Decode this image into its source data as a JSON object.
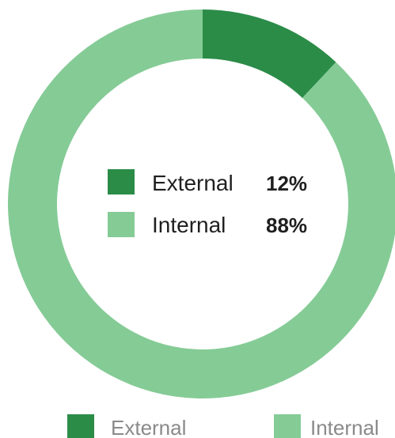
{
  "chart_data": {
    "type": "pie",
    "categories": [
      "External",
      "Internal"
    ],
    "values": [
      12,
      88
    ],
    "value_labels": [
      "12%",
      "88%"
    ],
    "colors": [
      "#2b8c48",
      "#85cb96"
    ],
    "donut": true,
    "legend_position": "bottom"
  }
}
